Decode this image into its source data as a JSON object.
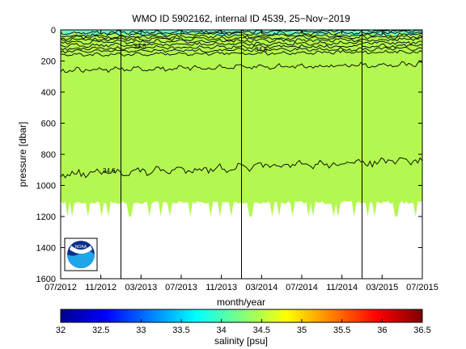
{
  "figure": {
    "title": "WMO ID 5902162, internal ID 4539, 25−Nov−2019"
  },
  "chart_data": [
    {
      "type": "heatmap",
      "title": "WMO ID 5902162, internal ID 4539, 25−Nov−2019",
      "xlabel": "month/year",
      "ylabel": "pressure [dbar]",
      "x_ticks": [
        "07/2012",
        "11/2012",
        "03/2013",
        "07/2013",
        "11/2013",
        "03/2014",
        "07/2014",
        "11/2014",
        "03/2015",
        "07/2015"
      ],
      "y_ticks": [
        0,
        200,
        400,
        600,
        800,
        1000,
        1200,
        1400,
        1600
      ],
      "ylim": [
        1600,
        0
      ],
      "y_reversed": true,
      "dominant_value_psu": 34.4,
      "surface_value_psu": 34.1,
      "contour_labels": [
        "34.6",
        "34.6",
        "34.6"
      ],
      "vertical_lines": [
        "01/2013",
        "01/2014",
        "01/2015"
      ],
      "data_bottom_dbar": [
        1100,
        1200
      ],
      "logo": "NOAA",
      "grid": false,
      "legend": "colorbar-bottom"
    },
    {
      "type": "colorbar",
      "label": "salinity [psu]",
      "range": [
        32,
        36.5
      ],
      "ticks": [
        "32",
        "32.5",
        "33",
        "33.5",
        "34",
        "34.5",
        "35",
        "35.5",
        "36",
        "36.5"
      ],
      "colormap": "jet"
    }
  ],
  "colors": {
    "field": "#b3f750",
    "surface": "#67f5c5",
    "contour": "#000000"
  }
}
